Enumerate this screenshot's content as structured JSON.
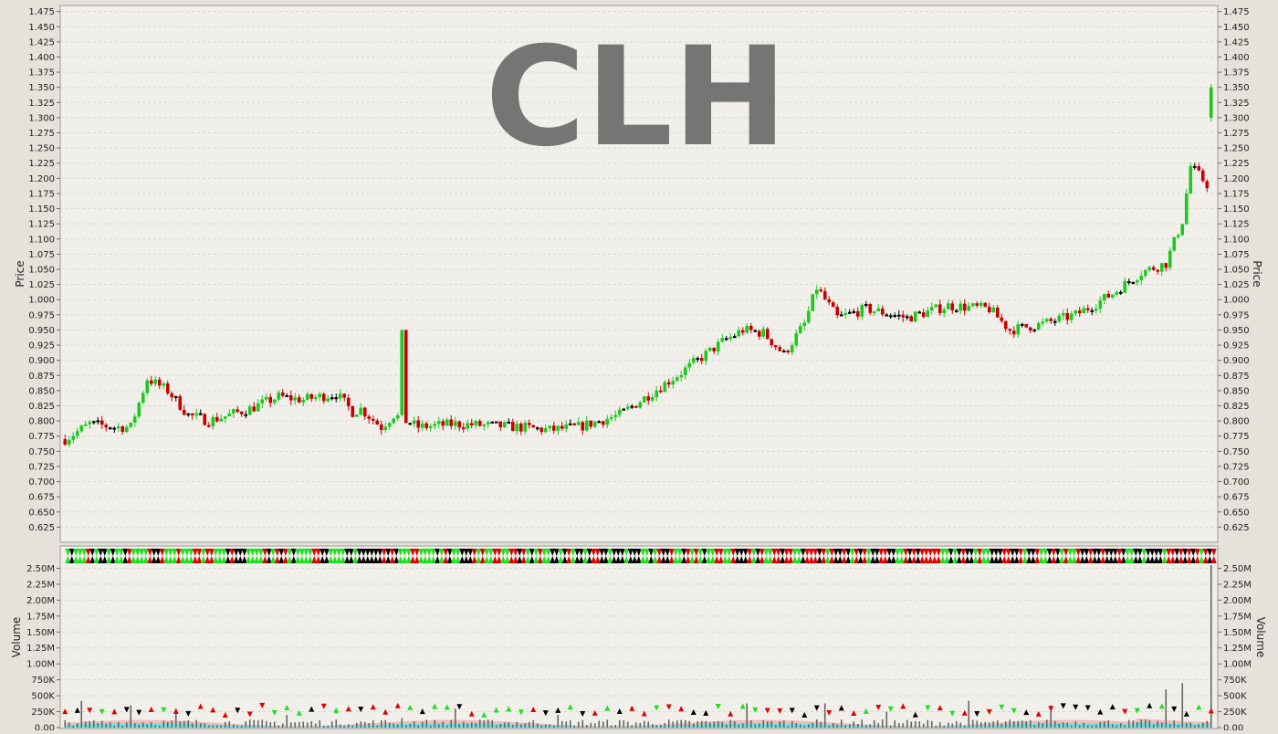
{
  "chart_data": [
    {
      "type": "candlestick",
      "title": "CLH",
      "ylabel": "Price",
      "ylim": [
        0.6,
        1.485
      ],
      "yticks": [
        "0.625",
        "0.650",
        "0.675",
        "0.700",
        "0.725",
        "0.750",
        "0.775",
        "0.800",
        "0.825",
        "0.850",
        "0.875",
        "0.900",
        "0.925",
        "0.950",
        "0.975",
        "1.000",
        "1.025",
        "1.050",
        "1.075",
        "1.100",
        "1.125",
        "1.150",
        "1.175",
        "1.200",
        "1.225",
        "1.250",
        "1.275",
        "1.300",
        "1.325",
        "1.350",
        "1.375",
        "1.400",
        "1.425",
        "1.450",
        "1.475"
      ],
      "grid": true,
      "colors": {
        "up": "#1ec81e",
        "down": "#c80000",
        "flat": "#000000"
      },
      "anchors": [
        [
          0,
          0.77
        ],
        [
          6,
          0.795
        ],
        [
          12,
          0.79
        ],
        [
          16,
          0.79
        ],
        [
          20,
          0.87
        ],
        [
          25,
          0.85
        ],
        [
          30,
          0.81
        ],
        [
          35,
          0.8
        ],
        [
          45,
          0.82
        ],
        [
          52,
          0.84
        ],
        [
          58,
          0.835
        ],
        [
          66,
          0.845
        ],
        [
          70,
          0.815
        ],
        [
          72,
          0.82
        ],
        [
          77,
          0.79
        ],
        [
          80,
          0.81
        ],
        [
          86,
          0.79
        ],
        [
          95,
          0.795
        ],
        [
          110,
          0.79
        ],
        [
          118,
          0.785
        ],
        [
          125,
          0.79
        ],
        [
          135,
          0.81
        ],
        [
          150,
          0.88
        ],
        [
          160,
          0.93
        ],
        [
          165,
          0.95
        ],
        [
          170,
          0.945
        ],
        [
          175,
          0.91
        ],
        [
          180,
          0.96
        ],
        [
          183,
          1.02
        ],
        [
          188,
          0.97
        ],
        [
          195,
          0.985
        ],
        [
          205,
          0.97
        ],
        [
          215,
          0.99
        ],
        [
          225,
          0.985
        ],
        [
          230,
          0.95
        ],
        [
          238,
          0.96
        ],
        [
          246,
          0.975
        ],
        [
          250,
          0.99
        ],
        [
          255,
          1.01
        ],
        [
          262,
          1.045
        ],
        [
          268,
          1.06
        ],
        [
          272,
          1.13
        ],
        [
          274,
          1.22
        ],
        [
          278,
          1.19
        ],
        [
          279,
          1.32
        ]
      ],
      "big_green_bar": {
        "x": 82,
        "open": 0.81,
        "close": 0.95
      }
    },
    {
      "type": "bar",
      "ylabel": "Volume",
      "ylim": [
        0,
        2650000
      ],
      "yticks": [
        "0.00",
        "250K",
        "500K",
        "750K",
        "1.00M",
        "1.25M",
        "1.50M",
        "1.75M",
        "2.00M",
        "2.25M",
        "2.50M"
      ],
      "grid": true,
      "spikes": [
        [
          4,
          0.42
        ],
        [
          16,
          0.35
        ],
        [
          27,
          0.3
        ],
        [
          54,
          0.2
        ],
        [
          82,
          0.15
        ],
        [
          95,
          0.3
        ],
        [
          120,
          0.2
        ],
        [
          166,
          0.38
        ],
        [
          185,
          0.38
        ],
        [
          200,
          0.25
        ],
        [
          220,
          0.42
        ],
        [
          240,
          0.35
        ],
        [
          268,
          0.6
        ],
        [
          272,
          0.7
        ],
        [
          279,
          2.55
        ]
      ],
      "legend_markers": "hourglass markers across the top band"
    }
  ]
}
